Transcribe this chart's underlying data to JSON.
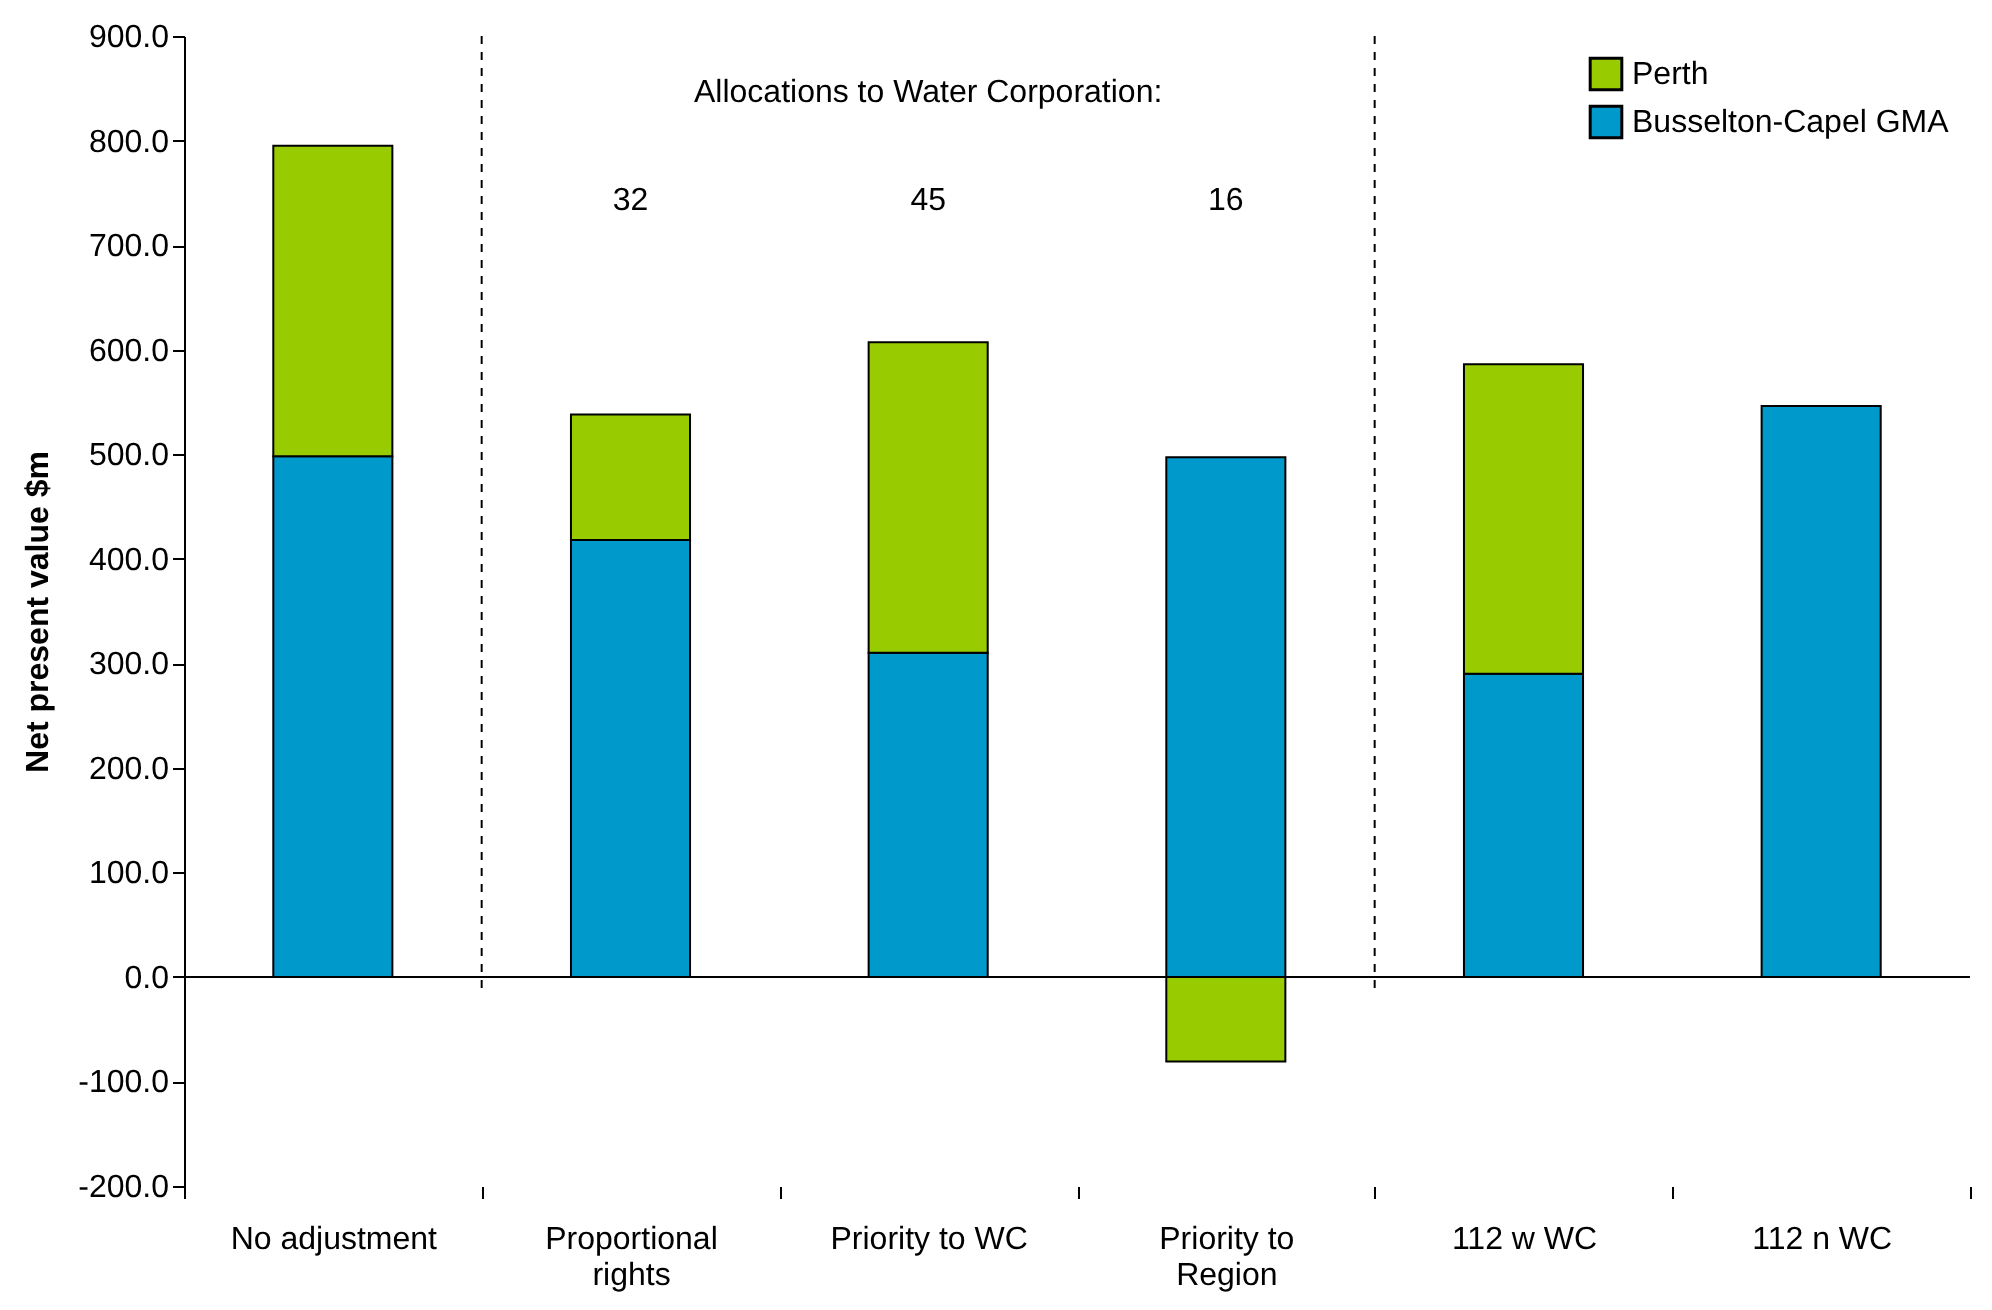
{
  "chart_data": {
    "type": "bar",
    "stacked": true,
    "categories": [
      "No adjustment",
      "Proportional rights",
      "Priority to WC",
      "Priority to Region",
      "112 w WC",
      "112 n WC"
    ],
    "series": [
      {
        "name": "Busselton-Capel GMA",
        "color": "#0099cc",
        "values": [
          498,
          418,
          310,
          497,
          290,
          546
        ]
      },
      {
        "name": "Perth",
        "color": "#99cc00",
        "values": [
          297,
          120,
          297,
          -81,
          296,
          null
        ]
      }
    ],
    "ylabel": "Net present value $m",
    "ylim": [
      -200,
      900
    ],
    "yticks": [
      {
        "value": -200,
        "label": "-200.0"
      },
      {
        "value": -100,
        "label": "-100.0"
      },
      {
        "value": 0,
        "label": "0.0"
      },
      {
        "value": 100,
        "label": "100.0"
      },
      {
        "value": 200,
        "label": "200.0"
      },
      {
        "value": 300,
        "label": "300.0"
      },
      {
        "value": 400,
        "label": "400.0"
      },
      {
        "value": 500,
        "label": "500.0"
      },
      {
        "value": 600,
        "label": "600.0"
      },
      {
        "value": 700,
        "label": "700.0"
      },
      {
        "value": 800,
        "label": "800.0"
      },
      {
        "value": 900,
        "label": "900.0"
      }
    ],
    "annotations": [
      "Allocations to Water Corporation:",
      "32",
      "45",
      "16"
    ],
    "legend": "top right",
    "grid": false
  }
}
